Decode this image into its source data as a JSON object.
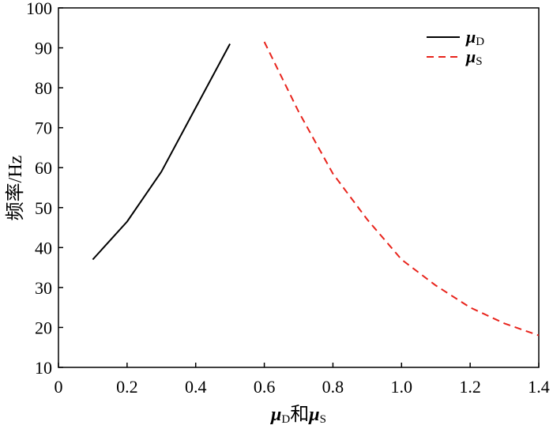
{
  "chart_data": {
    "type": "line",
    "xlabel": {
      "mu": "μ",
      "sub1": "D",
      "mid": "和",
      "mu2": "μ",
      "sub2": "S"
    },
    "ylabel": "频率/Hz",
    "xlim": [
      0,
      1.4
    ],
    "ylim": [
      10,
      100
    ],
    "xticks": [
      "0",
      "0.2",
      "0.4",
      "0.6",
      "0.8",
      "1.0",
      "1.2",
      "1.4"
    ],
    "xtick_values": [
      0,
      0.2,
      0.4,
      0.6,
      0.8,
      1.0,
      1.2,
      1.4
    ],
    "yticks": [
      "10",
      "20",
      "30",
      "40",
      "50",
      "60",
      "70",
      "80",
      "90",
      "100"
    ],
    "ytick_values": [
      10,
      20,
      30,
      40,
      50,
      60,
      70,
      80,
      90,
      100
    ],
    "grid": false,
    "legend_position": "top-right",
    "series": [
      {
        "name": "μ",
        "sub": "D",
        "color": "#000000",
        "style": "solid",
        "x": [
          0.1,
          0.2,
          0.3,
          0.4,
          0.5
        ],
        "y": [
          37,
          46.5,
          59,
          75,
          91
        ]
      },
      {
        "name": "μ",
        "sub": "S",
        "color": "#e8231b",
        "style": "dashed",
        "x": [
          0.6,
          0.7,
          0.8,
          0.9,
          1.0,
          1.1,
          1.2,
          1.3,
          1.4
        ],
        "y": [
          91.5,
          74,
          58.5,
          47,
          37,
          30.5,
          25,
          21,
          18
        ]
      }
    ]
  }
}
